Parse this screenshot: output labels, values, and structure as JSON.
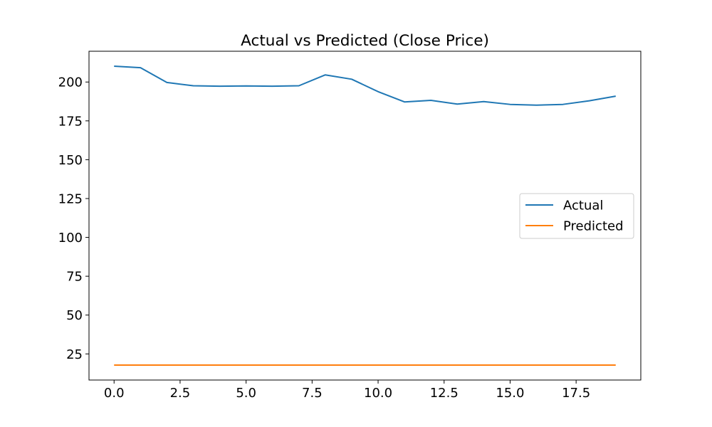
{
  "chart_data": {
    "type": "line",
    "title": "Actual vs Predicted (Close Price)",
    "xlabel": "",
    "ylabel": "",
    "x": [
      0,
      1,
      2,
      3,
      4,
      5,
      6,
      7,
      8,
      9,
      10,
      11,
      12,
      13,
      14,
      15,
      16,
      17,
      18,
      19
    ],
    "series": [
      {
        "name": "Actual",
        "color": "#1f77b4",
        "values": [
          210.2,
          209.2,
          199.7,
          197.6,
          197.3,
          197.5,
          197.3,
          197.6,
          204.6,
          201.8,
          193.8,
          187.2,
          188.2,
          185.8,
          187.4,
          185.6,
          185.1,
          185.6,
          187.9,
          190.9
        ]
      },
      {
        "name": "Predicted",
        "color": "#ff7f0e",
        "values": [
          17.8,
          17.8,
          17.8,
          17.8,
          17.8,
          17.8,
          17.8,
          17.8,
          17.8,
          17.8,
          17.8,
          17.8,
          17.8,
          17.8,
          17.8,
          17.8,
          17.8,
          17.8,
          17.8,
          17.8
        ]
      }
    ],
    "xlim": [
      -0.95,
      19.95
    ],
    "ylim": [
      8.19,
      219.81
    ],
    "xticks": [
      0.0,
      2.5,
      5.0,
      7.5,
      10.0,
      12.5,
      15.0,
      17.5
    ],
    "xtick_labels": [
      "0.0",
      "2.5",
      "5.0",
      "7.5",
      "10.0",
      "12.5",
      "15.0",
      "17.5"
    ],
    "yticks": [
      25,
      50,
      75,
      100,
      125,
      150,
      175,
      200
    ],
    "ytick_labels": [
      "25",
      "50",
      "75",
      "100",
      "125",
      "150",
      "175",
      "200"
    ],
    "grid": false,
    "legend_position": "center-right"
  }
}
